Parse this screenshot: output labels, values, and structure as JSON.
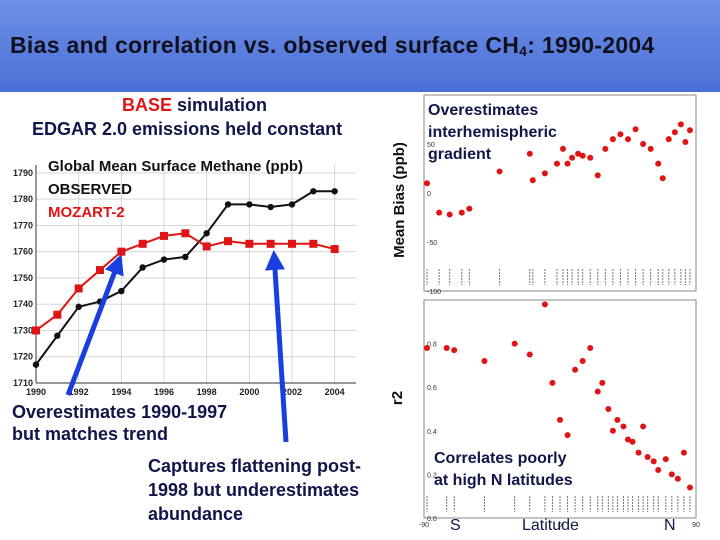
{
  "slide": {
    "title_main": "Bias and correlation vs. observed surface CH",
    "title_sub": "4",
    "title_tail": ": 1990-2004",
    "sim_label_1": "BASE",
    "sim_label_2": " simulation",
    "sim_label_line2": "EDGAR 2.0 emissions held constant",
    "note_overestimates_1": "Overestimates 1990-1997",
    "note_overestimates_2": "but matches trend",
    "note_flattening_1": "Captures flattening post-",
    "note_flattening_2": "1998 but underestimates",
    "note_flattening_3": "abundance",
    "note_gradient_1": "Overestimates",
    "note_gradient_2": "interhemispheric",
    "note_gradient_3": "gradient",
    "note_correlates_1": "Correlates poorly",
    "note_correlates_2": "at high N latitudes",
    "label_s": "S",
    "label_latitude": "Latitude",
    "label_n": "N",
    "colors": {
      "observed": "#111111",
      "model": "#e01414",
      "arrow": "#1a3ee0",
      "title_bar": "#5b7fe0"
    }
  },
  "chart_data": [
    {
      "type": "line",
      "title": "Global Mean Surface Methane (ppb)",
      "x": [
        1990,
        1991,
        1992,
        1993,
        1994,
        1995,
        1996,
        1997,
        1998,
        1999,
        2000,
        2001,
        2002,
        2003,
        2004
      ],
      "xticks": [
        "1990",
        "1992",
        "1994",
        "1996",
        "1998",
        "2000",
        "2002",
        "2004"
      ],
      "yticks": [
        "1710",
        "1720",
        "1730",
        "1740",
        "1750",
        "1760",
        "1770",
        "1780",
        "1790"
      ],
      "ylim": [
        1710,
        1793
      ],
      "xlim": [
        1990,
        2005
      ],
      "series": [
        {
          "name": "OBSERVED",
          "color": "#111111",
          "values": [
            1717,
            1728,
            1739,
            1741,
            1745,
            1754,
            1757,
            1758,
            1767,
            1778,
            1778,
            1777,
            1778,
            1783,
            1783
          ]
        },
        {
          "name": "MOZART-2",
          "color": "#e01414",
          "values": [
            1730,
            1736,
            1746,
            1753,
            1760,
            1763,
            1766,
            1767,
            1762,
            1764,
            1763,
            1763,
            1763,
            1763,
            1761
          ]
        }
      ]
    },
    {
      "type": "scatter",
      "ylabel": "Mean Bias (ppb)",
      "xlim": [
        -90,
        90
      ],
      "ylim": [
        -100,
        100
      ],
      "yticks": [
        "-100",
        "-50",
        "0",
        "50"
      ],
      "points": [
        [
          -88,
          10
        ],
        [
          -80,
          -20
        ],
        [
          -73,
          -22
        ],
        [
          -65,
          -20
        ],
        [
          -60,
          -16
        ],
        [
          -40,
          22
        ],
        [
          -20,
          40
        ],
        [
          -18,
          13
        ],
        [
          -10,
          20
        ],
        [
          -2,
          30
        ],
        [
          2,
          45
        ],
        [
          5,
          30
        ],
        [
          8,
          36
        ],
        [
          12,
          40
        ],
        [
          15,
          38
        ],
        [
          20,
          36
        ],
        [
          25,
          18
        ],
        [
          30,
          45
        ],
        [
          35,
          55
        ],
        [
          40,
          60
        ],
        [
          45,
          55
        ],
        [
          50,
          65
        ],
        [
          55,
          50
        ],
        [
          60,
          45
        ],
        [
          65,
          30
        ],
        [
          68,
          15
        ],
        [
          72,
          55
        ],
        [
          76,
          62
        ],
        [
          80,
          70
        ],
        [
          83,
          52
        ],
        [
          86,
          64
        ]
      ]
    },
    {
      "type": "scatter",
      "ylabel": "r2",
      "xlim": [
        -90,
        90
      ],
      "ylim": [
        0,
        1
      ],
      "yticks": [
        "0.0",
        "0.2",
        "0.4",
        "0.6",
        "0.8"
      ],
      "xticks": [
        "-90",
        "0",
        "90"
      ],
      "points": [
        [
          -88,
          0.78
        ],
        [
          -75,
          0.78
        ],
        [
          -70,
          0.77
        ],
        [
          -50,
          0.72
        ],
        [
          -30,
          0.8
        ],
        [
          -20,
          0.75
        ],
        [
          -10,
          0.98
        ],
        [
          -5,
          0.62
        ],
        [
          0,
          0.45
        ],
        [
          5,
          0.38
        ],
        [
          10,
          0.68
        ],
        [
          15,
          0.72
        ],
        [
          20,
          0.78
        ],
        [
          25,
          0.58
        ],
        [
          28,
          0.62
        ],
        [
          32,
          0.5
        ],
        [
          35,
          0.4
        ],
        [
          38,
          0.45
        ],
        [
          42,
          0.42
        ],
        [
          45,
          0.36
        ],
        [
          48,
          0.35
        ],
        [
          52,
          0.3
        ],
        [
          55,
          0.42
        ],
        [
          58,
          0.28
        ],
        [
          62,
          0.26
        ],
        [
          65,
          0.22
        ],
        [
          70,
          0.27
        ],
        [
          74,
          0.2
        ],
        [
          78,
          0.18
        ],
        [
          82,
          0.3
        ],
        [
          86,
          0.14
        ]
      ]
    }
  ]
}
